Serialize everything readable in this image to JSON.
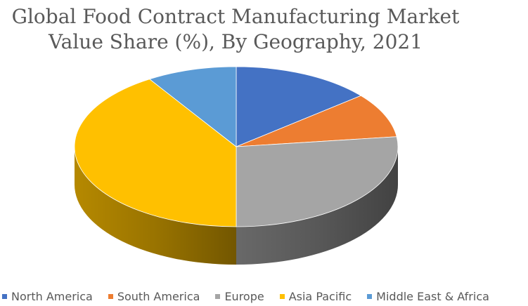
{
  "chart_data": {
    "type": "pie",
    "title_lines": [
      "Global Food Contract Manufacturing Market",
      "Value Share (%), By Geography, 2021"
    ],
    "categories": [
      "North America",
      "South America",
      "Europe",
      "Asia Pacific",
      "Middle East & Africa"
    ],
    "values": [
      14,
      9,
      27,
      41,
      9
    ],
    "colors": [
      "#4472C4",
      "#ED7D31",
      "#A5A5A5",
      "#FFC000",
      "#5B9BD5"
    ],
    "side_colors": [
      "#2F528F",
      "#AE5A21",
      "#6E6E6E",
      "#BF9000",
      "#3A75AB"
    ],
    "legend_position": "bottom",
    "style": "3D"
  }
}
